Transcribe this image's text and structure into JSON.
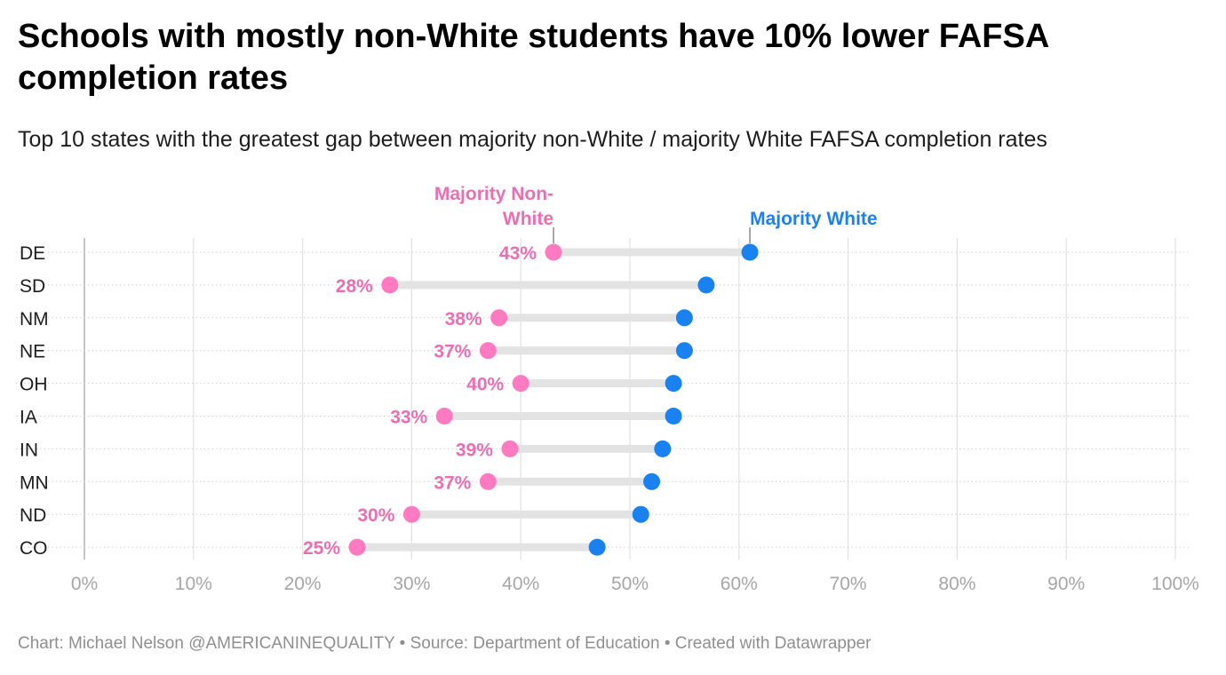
{
  "title": "Schools with mostly non-White students have 10% lower FAFSA completion rates",
  "subtitle": "Top 10 states with the greatest gap between majority non-White / majority White FAFSA completion rates",
  "footer": "Chart: Michael Nelson @AMERICANINEQUALITY • Source: Department of Education • Created with Datawrapper",
  "colors": {
    "non_white": "#ff7ac0",
    "non_white_text": "#ea6fb2",
    "white": "#1a82f0",
    "axis_text": "#a6a6a6",
    "label_text": "#1d1d1d",
    "range_bar": "#e3e3e3"
  },
  "chart_data": {
    "type": "dot-range",
    "title": "Schools with mostly non-White students have 10% lower FAFSA completion rates",
    "categories": [
      "DE",
      "SD",
      "NM",
      "NE",
      "OH",
      "IA",
      "IN",
      "MN",
      "ND",
      "CO"
    ],
    "series": [
      {
        "name": "Majority Non-White",
        "legend_lines": [
          "Majority Non-",
          "White"
        ],
        "values": [
          43,
          28,
          38,
          37,
          40,
          33,
          39,
          37,
          30,
          25
        ]
      },
      {
        "name": "Majority White",
        "legend_lines": [
          "Majority White"
        ],
        "values": [
          61,
          57,
          55,
          55,
          54,
          54,
          53,
          52,
          51,
          47
        ]
      }
    ],
    "data_labels": [
      "43%",
      "28%",
      "38%",
      "37%",
      "40%",
      "33%",
      "39%",
      "37%",
      "30%",
      "25%"
    ],
    "xlim": [
      0,
      100
    ],
    "ticks": [
      0,
      10,
      20,
      30,
      40,
      50,
      60,
      70,
      80,
      90,
      100
    ],
    "tick_labels": [
      "0%",
      "10%",
      "20%",
      "30%",
      "40%",
      "50%",
      "60%",
      "70%",
      "80%",
      "90%",
      "100%"
    ],
    "xlabel": "",
    "ylabel": "",
    "grid": true
  }
}
